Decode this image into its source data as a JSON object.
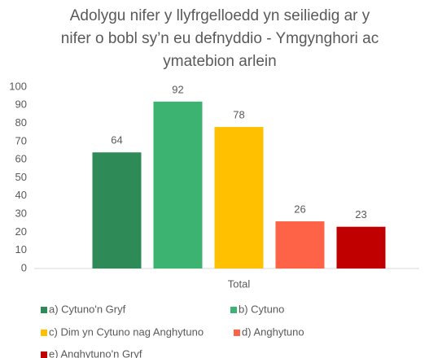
{
  "chart_data": {
    "type": "bar",
    "title": [
      "Adolygu nifer y llyfrgelloedd yn seiliedig ar y",
      "nifer o bobl sy’n eu defnyddio - Ymgynghori ac",
      "ymatebion arlein"
    ],
    "categories": [
      "Total"
    ],
    "series": [
      {
        "name": "a) Cytuno'n Gryf",
        "color": "#2e8b57",
        "values": [
          64
        ]
      },
      {
        "name": "b) Cytuno",
        "color": "#3cb371",
        "values": [
          92
        ]
      },
      {
        "name": "c) Dim yn Cytuno nag Anghytuno",
        "color": "#ffc000",
        "values": [
          78
        ]
      },
      {
        "name": "d) Anghytuno",
        "color": "#ff6347",
        "values": [
          26
        ]
      },
      {
        "name": "e) Anghytuno'n Gryf",
        "color": "#c00000",
        "values": [
          23
        ]
      }
    ],
    "ylim": [
      0,
      100
    ],
    "yticks": [
      0,
      10,
      20,
      30,
      40,
      50,
      60,
      70,
      80,
      90,
      100
    ],
    "grid": false
  }
}
